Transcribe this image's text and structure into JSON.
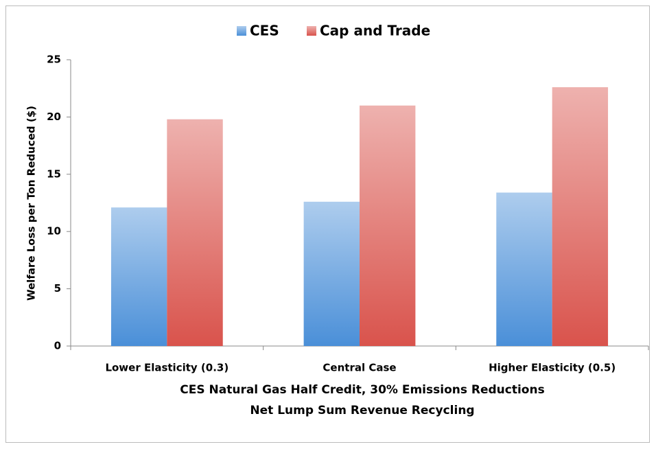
{
  "chart_data": {
    "type": "bar",
    "categories": [
      "Lower Elasticity (0.3)",
      "Central Case",
      "Higher Elasticity (0.5)"
    ],
    "series": [
      {
        "name": "CES",
        "color": "#4a8fd8",
        "values": [
          12.1,
          12.6,
          13.4
        ]
      },
      {
        "name": "Cap and Trade",
        "color": "#d9534c",
        "values": [
          19.8,
          21.0,
          22.6
        ]
      }
    ],
    "ylabel": "Welfare Loss per Ton Reduced ($)",
    "xlabel": [
      "CES Natural Gas Half Credit, 30% Emissions Reductions",
      "Net Lump Sum Revenue Recycling"
    ],
    "ylim": [
      0,
      25
    ],
    "yticks": [
      0,
      5,
      10,
      15,
      20,
      25
    ],
    "grid": false,
    "legend": "top"
  }
}
